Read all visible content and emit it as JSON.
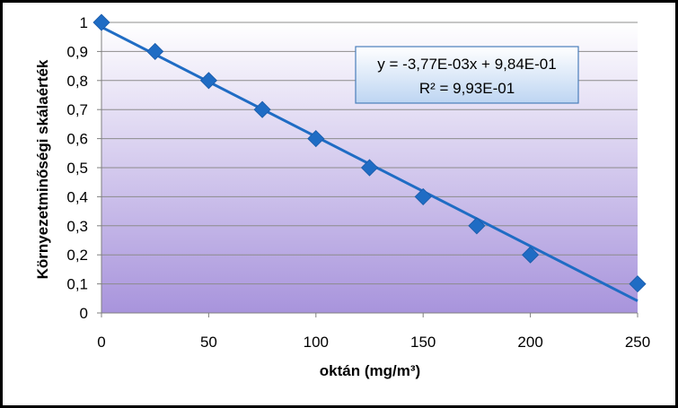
{
  "chart_data": {
    "type": "scatter",
    "xlabel": "oktán (mg/m³)",
    "ylabel": "Környezetminőségi skálaérték",
    "xlim": [
      0,
      250
    ],
    "ylim": [
      0,
      1
    ],
    "x_ticks": [
      "0",
      "50",
      "100",
      "150",
      "200",
      "250"
    ],
    "y_ticks": [
      "0",
      "0,1",
      "0,2",
      "0,3",
      "0,4",
      "0,5",
      "0,6",
      "0,7",
      "0,8",
      "0,9",
      "1"
    ],
    "grid": "horizontal",
    "series": [
      {
        "x": [
          0,
          25,
          50,
          75,
          100,
          125,
          150,
          175,
          200,
          250
        ],
        "y": [
          1.0,
          0.9,
          0.8,
          0.7,
          0.6,
          0.5,
          0.4,
          0.3,
          0.2,
          0.1
        ],
        "marker": "diamond",
        "color": "#1F6CC4"
      }
    ],
    "trendline": {
      "type": "linear",
      "slope": -0.00377,
      "intercept": 0.984,
      "color": "#1F6CC4",
      "equation": "y = -3,77E-03x + 9,84E-01",
      "r_squared": "R² = 9,93E-01"
    },
    "plot_background": {
      "top": "#FFFFFF",
      "bottom": "#A894DC"
    }
  }
}
